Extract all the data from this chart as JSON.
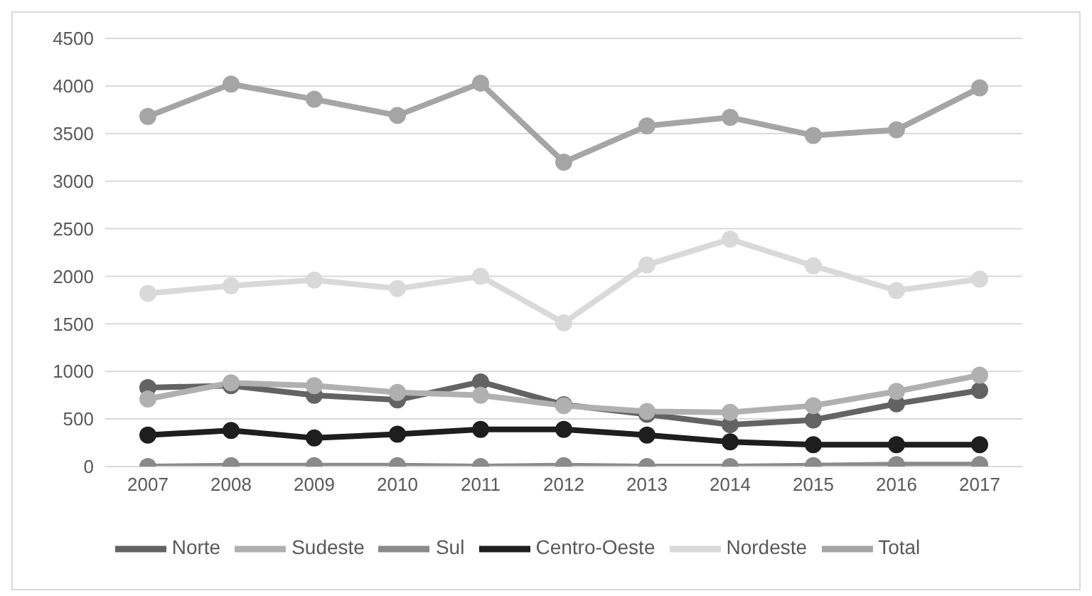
{
  "chart_data": {
    "type": "line",
    "categories": [
      "2007",
      "2008",
      "2009",
      "2010",
      "2011",
      "2012",
      "2013",
      "2014",
      "2015",
      "2016",
      "2017"
    ],
    "series": [
      {
        "name": "Norte",
        "color": "#636363",
        "values": [
          830,
          850,
          750,
          700,
          890,
          650,
          550,
          440,
          490,
          660,
          800
        ]
      },
      {
        "name": "Sudeste",
        "color": "#b0b0b0",
        "values": [
          710,
          880,
          850,
          780,
          750,
          640,
          580,
          570,
          640,
          790,
          960
        ]
      },
      {
        "name": "Sul",
        "color": "#8a8a8a",
        "values": [
          0,
          10,
          10,
          10,
          0,
          10,
          0,
          0,
          10,
          20,
          20
        ]
      },
      {
        "name": "Centro-Oeste",
        "color": "#1e1e1e",
        "values": [
          330,
          380,
          300,
          340,
          390,
          390,
          330,
          260,
          230,
          230,
          230
        ]
      },
      {
        "name": "Nordeste",
        "color": "#d9d9d9",
        "values": [
          1820,
          1900,
          1960,
          1870,
          2000,
          1510,
          2120,
          2390,
          2110,
          1850,
          1970
        ]
      },
      {
        "name": "Total",
        "color": "#a5a5a5",
        "values": [
          3680,
          4020,
          3860,
          3690,
          4030,
          3200,
          3580,
          3670,
          3480,
          3540,
          3980
        ]
      }
    ],
    "ylim": [
      0,
      4500
    ],
    "yticks": [
      0,
      500,
      1000,
      1500,
      2000,
      2500,
      3000,
      3500,
      4000,
      4500
    ],
    "grid": "y",
    "legend": "bottom",
    "marker": "circle",
    "line_style": "solid"
  }
}
